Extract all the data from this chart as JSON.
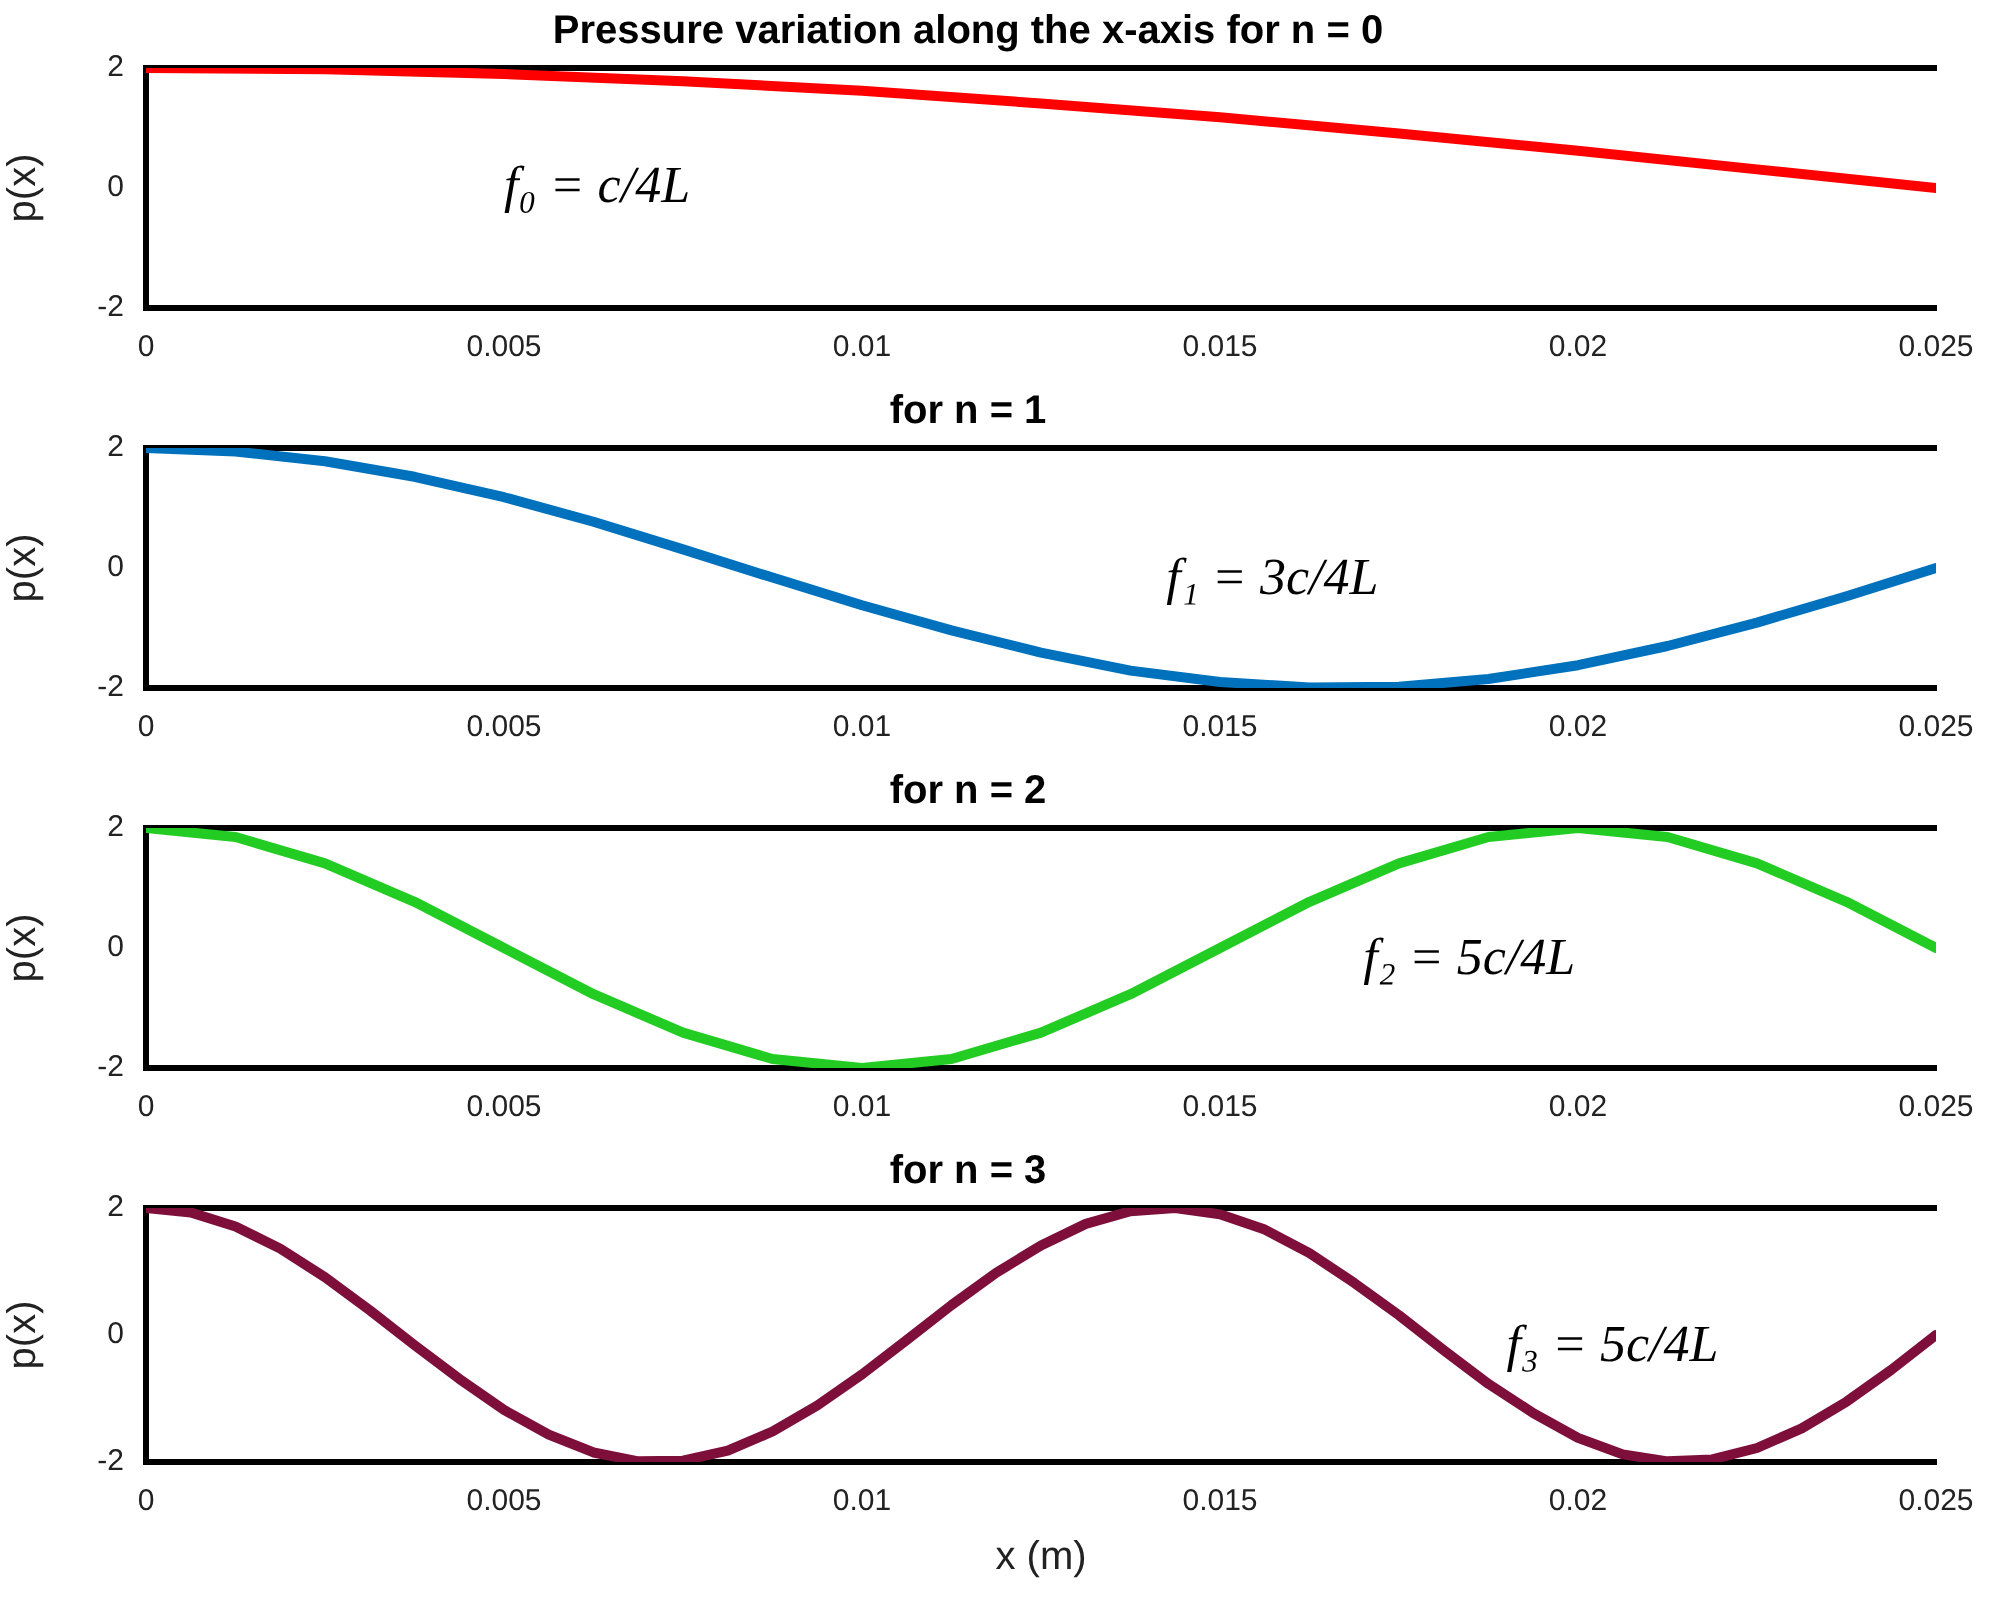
{
  "chart_data": [
    {
      "type": "line",
      "title": "Pressure variation along the x-axis for n = 0",
      "ylabel": "p(x)",
      "annotations": [
        "f₀ = c/4L"
      ],
      "xlim": [
        0,
        0.025
      ],
      "xticks": [
        0,
        0.005,
        0.01,
        0.015,
        0.02,
        0.025
      ],
      "ylim": [
        -2,
        2
      ],
      "yticks": [
        -2,
        0,
        2
      ],
      "grid": false,
      "legend": false,
      "marker": "none",
      "line_style": "solid",
      "series": [
        {
          "color": "#ff0000",
          "x": [
            0,
            0.0025,
            0.005,
            0.0075,
            0.01,
            0.0125,
            0.015,
            0.0175,
            0.02,
            0.0225,
            0.025
          ],
          "values": [
            2,
            1.98,
            1.9,
            1.78,
            1.62,
            1.41,
            1.18,
            0.91,
            0.62,
            0.31,
            0
          ]
        }
      ]
    },
    {
      "type": "line",
      "title": "for n = 1",
      "ylabel": "p(x)",
      "annotations": [
        "f₁ = 3c/4L"
      ],
      "xlim": [
        0,
        0.025
      ],
      "xticks": [
        0,
        0.005,
        0.01,
        0.015,
        0.02,
        0.025
      ],
      "ylim": [
        -2,
        2
      ],
      "yticks": [
        -2,
        0,
        2
      ],
      "grid": false,
      "legend": false,
      "marker": "none",
      "line_style": "solid",
      "series": [
        {
          "color": "#0072bd",
          "x": [
            0,
            0.00125,
            0.0025,
            0.00375,
            0.005,
            0.00625,
            0.0075,
            0.00875,
            0.01,
            0.01125,
            0.0125,
            0.01375,
            0.015,
            0.01625,
            0.0175,
            0.01875,
            0.02,
            0.02125,
            0.0225,
            0.02375,
            0.025
          ],
          "values": [
            2,
            1.94,
            1.78,
            1.52,
            1.18,
            0.77,
            0.31,
            -0.16,
            -0.62,
            -1.04,
            -1.41,
            -1.71,
            -1.9,
            -1.99,
            -1.98,
            -1.85,
            -1.62,
            -1.3,
            -0.91,
            -0.47,
            0
          ]
        }
      ]
    },
    {
      "type": "line",
      "title": "for n = 2",
      "ylabel": "p(x)",
      "annotations": [
        "f₂ = 5c/4L"
      ],
      "xlim": [
        0,
        0.025
      ],
      "xticks": [
        0,
        0.005,
        0.01,
        0.015,
        0.02,
        0.025
      ],
      "ylim": [
        -2,
        2
      ],
      "yticks": [
        -2,
        0,
        2
      ],
      "grid": false,
      "legend": false,
      "marker": "none",
      "line_style": "solid",
      "series": [
        {
          "color": "#22cc22",
          "x": [
            0,
            0.00125,
            0.0025,
            0.00375,
            0.005,
            0.00625,
            0.0075,
            0.00875,
            0.01,
            0.01125,
            0.0125,
            0.01375,
            0.015,
            0.01625,
            0.0175,
            0.01875,
            0.02,
            0.02125,
            0.0225,
            0.02375,
            0.025
          ],
          "values": [
            2,
            1.85,
            1.41,
            0.77,
            0,
            -0.77,
            -1.41,
            -1.85,
            -2,
            -1.85,
            -1.41,
            -0.77,
            0,
            0.77,
            1.41,
            1.85,
            2,
            1.85,
            1.41,
            0.77,
            0
          ]
        }
      ]
    },
    {
      "type": "line",
      "title": "for n = 3",
      "ylabel": "p(x)",
      "xlabel": "x (m)",
      "annotations": [
        "f₃ = 5c/4L"
      ],
      "xlim": [
        0,
        0.025
      ],
      "xticks": [
        0,
        0.005,
        0.01,
        0.015,
        0.02,
        0.025
      ],
      "ylim": [
        -2,
        2
      ],
      "yticks": [
        -2,
        0,
        2
      ],
      "grid": false,
      "legend": false,
      "marker": "none",
      "line_style": "solid",
      "series": [
        {
          "color": "#7e0f3a",
          "x": [
            0,
            0.000625,
            0.00125,
            0.001875,
            0.0025,
            0.003125,
            0.00375,
            0.004375,
            0.005,
            0.005625,
            0.00625,
            0.006875,
            0.0075,
            0.008125,
            0.00875,
            0.009375,
            0.01,
            0.010625,
            0.01125,
            0.011875,
            0.0125,
            0.013125,
            0.01375,
            0.014375,
            0.015,
            0.015625,
            0.01625,
            0.016875,
            0.0175,
            0.018125,
            0.01875,
            0.019375,
            0.02,
            0.020625,
            0.02125,
            0.021875,
            0.0225,
            0.023125,
            0.02375,
            0.024375,
            0.025
          ],
          "values": [
            2,
            1.93,
            1.71,
            1.36,
            0.91,
            0.39,
            -0.16,
            -0.69,
            -1.18,
            -1.57,
            -1.85,
            -1.99,
            -1.98,
            -1.82,
            -1.52,
            -1.11,
            -0.62,
            -0.08,
            0.47,
            0.98,
            1.41,
            1.75,
            1.95,
            2,
            1.9,
            1.66,
            1.29,
            0.82,
            0.31,
            -0.24,
            -0.77,
            -1.23,
            -1.62,
            -1.88,
            -1.99,
            -1.96,
            -1.78,
            -1.47,
            -1.05,
            -0.55,
            0
          ]
        }
      ]
    }
  ]
}
